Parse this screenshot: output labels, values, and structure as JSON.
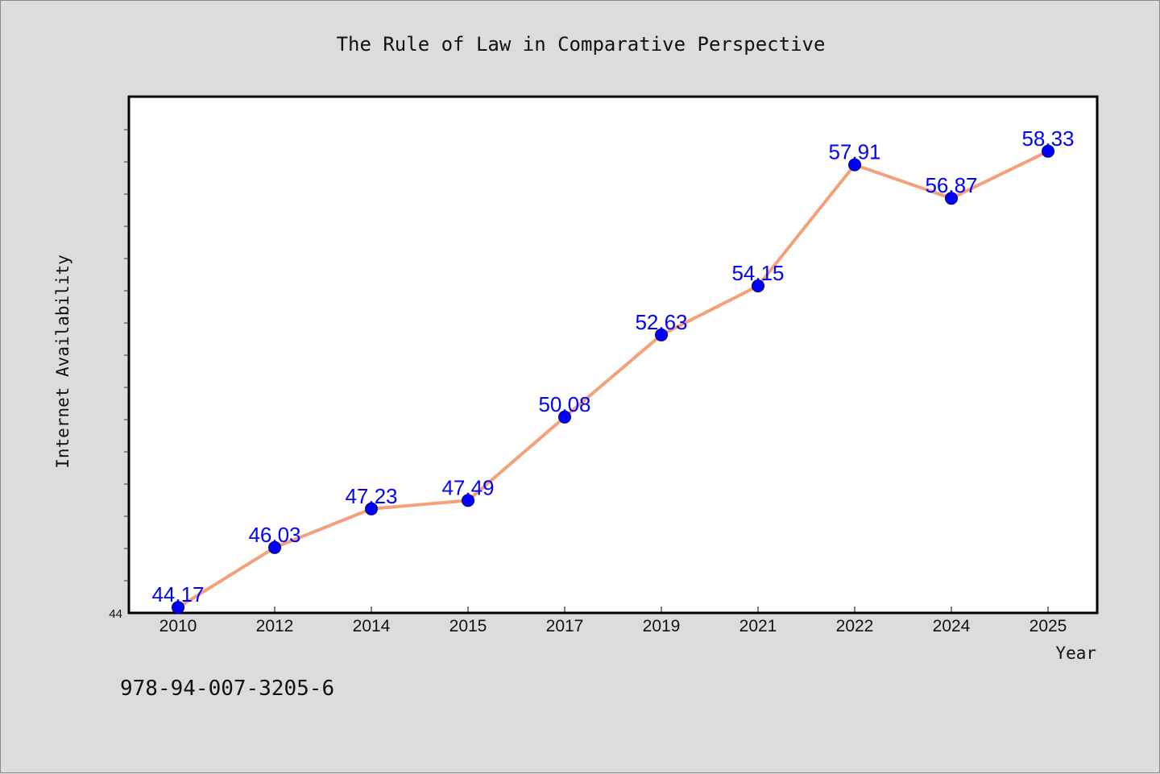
{
  "chart_data": {
    "type": "line",
    "title": "The Rule of Law in Comparative Perspective",
    "xlabel": "Year",
    "ylabel": "Internet Availability",
    "categories": [
      "2010",
      "2012",
      "2014",
      "2015",
      "2017",
      "2019",
      "2021",
      "2022",
      "2024",
      "2025"
    ],
    "series": [
      {
        "values": [
          44.17,
          46.03,
          47.23,
          47.49,
          50.08,
          52.63,
          54.15,
          57.91,
          56.87,
          58.33
        ],
        "labels": [
          "44.17",
          "46.03",
          "47.23",
          "47.49",
          "50.08",
          "52.63",
          "54.15",
          "57.91",
          "56.87",
          "58.33"
        ]
      }
    ],
    "ylim": [
      44,
      60
    ],
    "yticks_labeled": [
      "44"
    ],
    "grid": false,
    "colors": {
      "line": "#f4a07a",
      "marker": "#0000ff",
      "label": "#0000ff",
      "background": "#dcdcdc",
      "plot_bg": "#ffffff"
    }
  },
  "footer": {
    "identifier": "978-94-007-3205-6"
  }
}
